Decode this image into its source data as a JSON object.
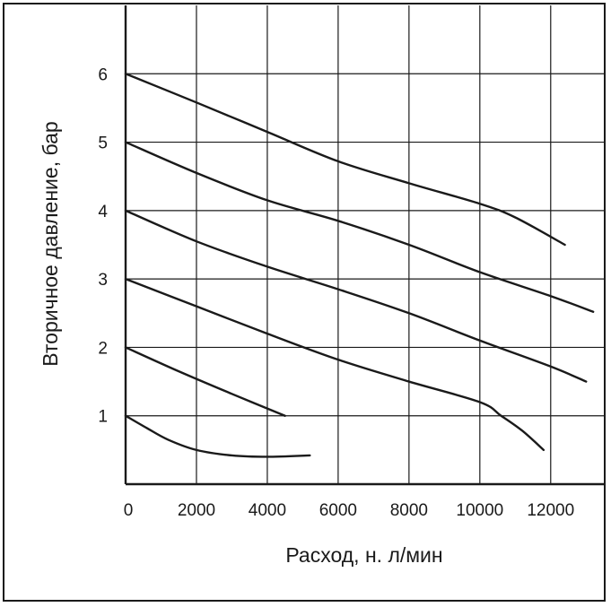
{
  "chart_data": {
    "type": "line",
    "xlabel": "Расход, н. л/мин",
    "ylabel": "Вторичное давление, бар",
    "xlim": [
      0,
      13500
    ],
    "ylim": [
      0,
      7
    ],
    "x_ticks": [
      0,
      2000,
      4000,
      6000,
      8000,
      10000,
      12000
    ],
    "y_ticks": [
      1,
      2,
      3,
      4,
      5,
      6
    ],
    "grid": true,
    "colors": {
      "line": "#1a1a1a",
      "grid": "#1a1a1a"
    },
    "series": [
      {
        "x": [
          0,
          600,
          1200,
          2000,
          3000,
          4000,
          5200
        ],
        "y": [
          1.0,
          0.82,
          0.65,
          0.5,
          0.42,
          0.4,
          0.42
        ]
      },
      {
        "x": [
          0,
          1500,
          3000,
          4500
        ],
        "y": [
          2.0,
          1.65,
          1.32,
          1.0
        ]
      },
      {
        "x": [
          0,
          2000,
          4000,
          6000,
          8000,
          10000,
          10600,
          11200,
          11800
        ],
        "y": [
          3.0,
          2.6,
          2.2,
          1.82,
          1.5,
          1.2,
          1.0,
          0.78,
          0.5
        ]
      },
      {
        "x": [
          0,
          2000,
          4000,
          6000,
          8000,
          10000,
          12000,
          13000
        ],
        "y": [
          4.0,
          3.55,
          3.18,
          2.85,
          2.5,
          2.1,
          1.72,
          1.5
        ]
      },
      {
        "x": [
          0,
          2000,
          4000,
          6000,
          8000,
          10000,
          12000,
          13200
        ],
        "y": [
          5.0,
          4.55,
          4.15,
          3.85,
          3.5,
          3.1,
          2.75,
          2.52
        ]
      },
      {
        "x": [
          0,
          2000,
          4000,
          6000,
          8000,
          10000,
          11000,
          12400
        ],
        "y": [
          6.0,
          5.58,
          5.15,
          4.72,
          4.4,
          4.1,
          3.9,
          3.5
        ]
      }
    ]
  }
}
